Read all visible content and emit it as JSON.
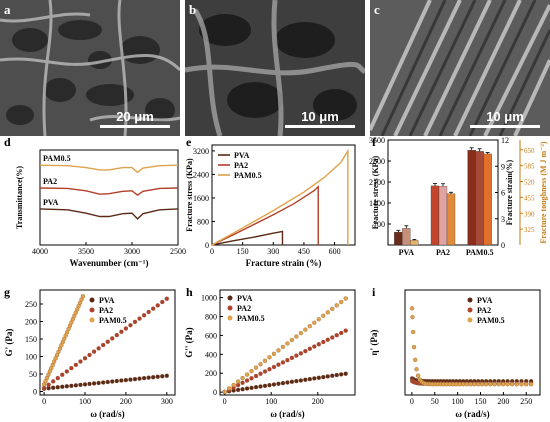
{
  "sem_panels": [
    {
      "letter": "a",
      "scale_bar": "20 μm"
    },
    {
      "letter": "b",
      "scale_bar": "10 μm"
    },
    {
      "letter": "c",
      "scale_bar": "10 μm"
    }
  ],
  "colors": {
    "PVA": "#5a2a16",
    "PA2": "#b3402a",
    "PAM0.5": "#e0a24a",
    "toughness": "#c87a12"
  },
  "chart_data": [
    {
      "panel": "d",
      "type": "line",
      "xlabel": "Wavenumber (cm⁻¹)",
      "ylabel": "Transmittance(%)",
      "xlim": [
        4000,
        2500
      ],
      "xticks": [
        4000,
        3500,
        3000,
        2500
      ],
      "series": [
        {
          "name": "PAM0.5",
          "x": [
            4000,
            3700,
            3500,
            3350,
            3250,
            3100,
            3000,
            2940,
            2880,
            2700,
            2500
          ],
          "y": [
            0.84,
            0.835,
            0.815,
            0.79,
            0.79,
            0.815,
            0.815,
            0.765,
            0.81,
            0.835,
            0.84
          ]
        },
        {
          "name": "PA2",
          "x": [
            4000,
            3700,
            3500,
            3350,
            3250,
            3100,
            3000,
            2940,
            2880,
            2700,
            2500
          ],
          "y": [
            0.6,
            0.595,
            0.57,
            0.535,
            0.54,
            0.565,
            0.57,
            0.525,
            0.565,
            0.595,
            0.6
          ]
        },
        {
          "name": "PVA",
          "x": [
            4000,
            3700,
            3500,
            3350,
            3250,
            3100,
            3000,
            2940,
            2880,
            2700,
            2500
          ],
          "y": [
            0.38,
            0.37,
            0.335,
            0.3,
            0.3,
            0.33,
            0.335,
            0.275,
            0.33,
            0.37,
            0.38
          ]
        }
      ]
    },
    {
      "panel": "e",
      "type": "line",
      "xlabel": "Fracture  strain (%)",
      "ylabel": "Fracture  stress (KPa)",
      "xlim": [
        0,
        700
      ],
      "ylim": [
        0,
        3400
      ],
      "xticks": [
        0,
        150,
        300,
        450,
        600
      ],
      "yticks": [
        0,
        800,
        1600,
        2400,
        3200
      ],
      "series": [
        {
          "name": "PVA",
          "x": [
            0,
            50,
            100,
            200,
            300,
            345,
            345
          ],
          "y": [
            0,
            70,
            140,
            260,
            400,
            460,
            0
          ]
        },
        {
          "name": "PA2",
          "x": [
            0,
            100,
            200,
            300,
            400,
            500,
            520,
            520
          ],
          "y": [
            0,
            330,
            680,
            1030,
            1400,
            1850,
            1980,
            0
          ]
        },
        {
          "name": "PAM0.5",
          "x": [
            0,
            150,
            300,
            450,
            550,
            630,
            665,
            665
          ],
          "y": [
            0,
            580,
            1170,
            1800,
            2300,
            2800,
            3200,
            0
          ]
        }
      ]
    },
    {
      "panel": "f",
      "type": "bar",
      "categories": [
        "PVA",
        "PA2",
        "PAM0.5"
      ],
      "ylabel": "Fracture stress (KPa)",
      "ylabel2": "Fracture strain(%)",
      "ylabel3": "Fracture toughness  (M J m⁻³)",
      "ylim": [
        0,
        3500
      ],
      "yticks": [
        700,
        1400,
        2100,
        2800,
        3500
      ],
      "y2lim": [
        0,
        12
      ],
      "y2ticks": [
        0,
        3,
        6,
        9,
        12
      ],
      "y3lim": [
        260,
        690
      ],
      "y3ticks": [
        325,
        390,
        455,
        520,
        585,
        650
      ],
      "series": [
        {
          "name": "Fracture stress",
          "values": [
            430,
            1970,
            3160
          ],
          "errors": [
            60,
            80,
            80
          ]
        },
        {
          "name": "Fracture strain",
          "values": [
            1.9,
            6.7,
            10.7
          ],
          "errors": [
            0.3,
            0.3,
            0.3
          ]
        },
        {
          "name": "Fracture toughness",
          "values": [
            279,
            470,
            633
          ],
          "errors": [
            4,
            6,
            6
          ]
        }
      ]
    },
    {
      "panel": "g",
      "type": "scatter",
      "xlabel": "ω (rad/s)",
      "ylabel": "G' (Pa)",
      "xlim": [
        -10,
        320
      ],
      "ylim": [
        -10,
        290
      ],
      "xticks": [
        0,
        100,
        200,
        300
      ],
      "yticks": [
        0,
        50,
        100,
        150,
        200,
        250
      ],
      "series": [
        {
          "name": "PVA",
          "x0": 0,
          "x1": 300,
          "y0": 8,
          "y1": 45
        },
        {
          "name": "PA2",
          "x0": 0,
          "x1": 300,
          "y0": 10,
          "y1": 265
        },
        {
          "name": "PAM0.5",
          "x0": 0,
          "x1": 95,
          "y0": 20,
          "y1": 272
        }
      ]
    },
    {
      "panel": "h",
      "type": "scatter",
      "xlabel": "ω (rad/s)",
      "ylabel": "G'' (Pa)",
      "xlim": [
        -10,
        280
      ],
      "ylim": [
        -30,
        1080
      ],
      "xticks": [
        0,
        100,
        200
      ],
      "yticks": [
        0,
        200,
        400,
        600,
        800,
        1000
      ],
      "series": [
        {
          "name": "PVA",
          "x0": 0,
          "x1": 260,
          "y0": 3,
          "y1": 195
        },
        {
          "name": "PA2",
          "x0": 0,
          "x1": 260,
          "y0": 3,
          "y1": 650
        },
        {
          "name": "PAM0.5",
          "x0": 0,
          "x1": 260,
          "y0": 3,
          "y1": 990
        }
      ]
    },
    {
      "panel": "i",
      "type": "scatter",
      "xlabel": "ω (rad/s)",
      "ylabel": "η' (Pa)",
      "xlim": [
        -15,
        280
      ],
      "ylim": [
        -2,
        40
      ],
      "xticks": [
        0,
        50,
        100,
        150,
        200,
        250
      ],
      "yticks": [],
      "series": [
        {
          "name": "PVA",
          "plateau": 3.5
        },
        {
          "name": "PA2",
          "plateau": 2.5
        },
        {
          "name": "PAM0.5",
          "plateau": 2.3
        }
      ]
    }
  ]
}
